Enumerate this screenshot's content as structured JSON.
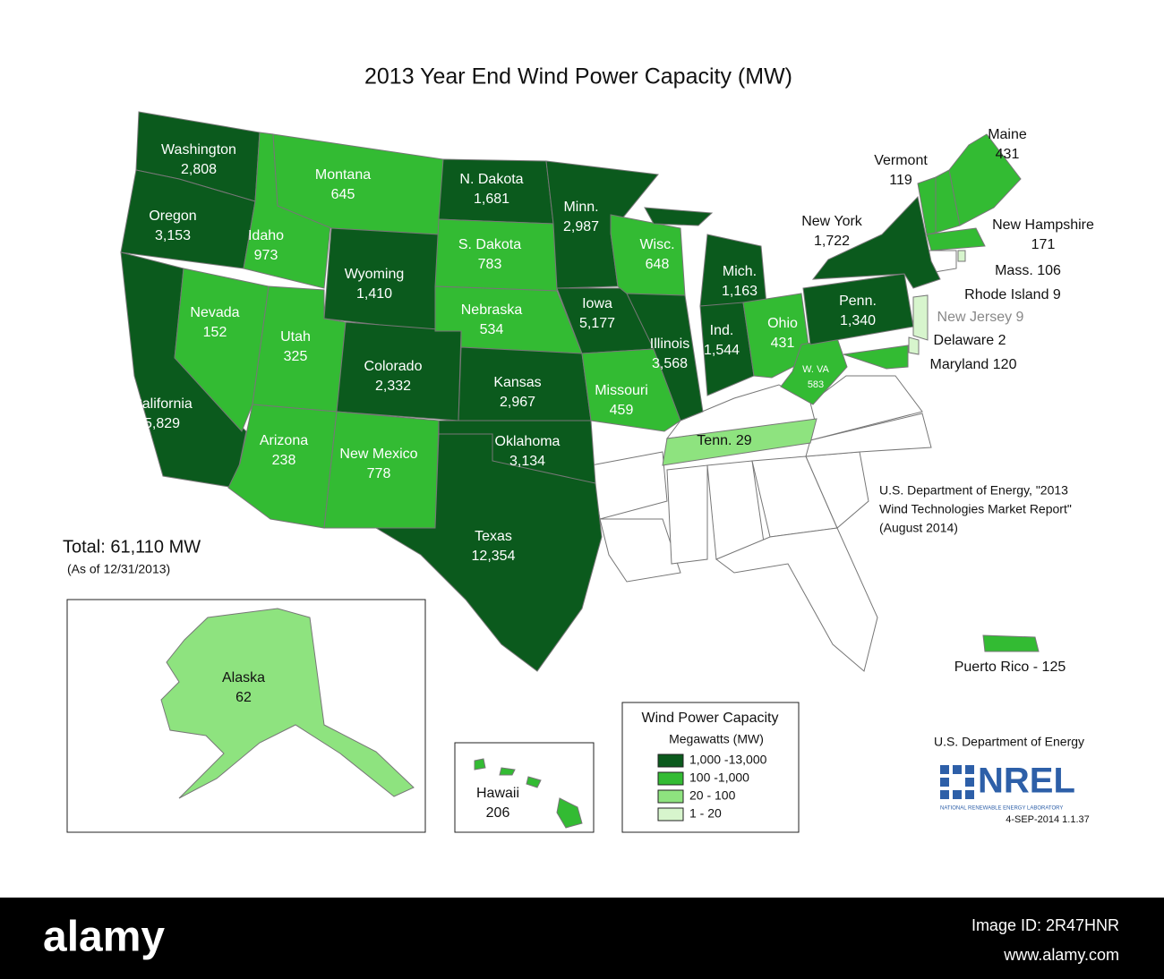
{
  "title": "2013 Year End Wind Power Capacity (MW)",
  "regions": [
    {
      "label": "Washington",
      "value": "2,808",
      "color": "#0b5a1d"
    },
    {
      "label": "Oregon",
      "value": "3,153",
      "color": "#0b5a1d"
    },
    {
      "label": "California",
      "value": "5,829",
      "color": "#0b5a1d"
    },
    {
      "label": "Nevada",
      "value": "152",
      "color": "#33bb33"
    },
    {
      "label": "Idaho",
      "value": "973",
      "color": "#33bb33"
    },
    {
      "label": "Montana",
      "value": "645",
      "color": "#33bb33"
    },
    {
      "label": "Wyoming",
      "value": "1,410",
      "color": "#0b5a1d"
    },
    {
      "label": "Utah",
      "value": "325",
      "color": "#33bb33"
    },
    {
      "label": "Colorado",
      "value": "2,332",
      "color": "#0b5a1d"
    },
    {
      "label": "Arizona",
      "value": "238",
      "color": "#33bb33"
    },
    {
      "label": "New Mexico",
      "value": "778",
      "color": "#33bb33"
    },
    {
      "label": "N. Dakota",
      "value": "1,681",
      "color": "#0b5a1d"
    },
    {
      "label": "S. Dakota",
      "value": "783",
      "color": "#33bb33"
    },
    {
      "label": "Nebraska",
      "value": "534",
      "color": "#33bb33"
    },
    {
      "label": "Kansas",
      "value": "2,967",
      "color": "#0b5a1d"
    },
    {
      "label": "Oklahoma",
      "value": "3,134",
      "color": "#0b5a1d"
    },
    {
      "label": "Texas",
      "value": "12,354",
      "color": "#0b5a1d"
    },
    {
      "label": "Minn.",
      "value": "2,987",
      "color": "#0b5a1d"
    },
    {
      "label": "Iowa",
      "value": "5,177",
      "color": "#0b5a1d"
    },
    {
      "label": "Missouri",
      "value": "459",
      "color": "#33bb33"
    },
    {
      "label": "Wisc.",
      "value": "648",
      "color": "#33bb33"
    },
    {
      "label": "Illinois",
      "value": "3,568",
      "color": "#0b5a1d"
    },
    {
      "label": "Mich.",
      "value": "1,163",
      "color": "#0b5a1d"
    },
    {
      "label": "Ind.",
      "value": "1,544",
      "color": "#0b5a1d"
    },
    {
      "label": "Ohio",
      "value": "431",
      "color": "#33bb33"
    },
    {
      "label": "W. VA",
      "value": "583",
      "color": "#33bb33"
    },
    {
      "label": "Penn.",
      "value": "1,340",
      "color": "#0b5a1d"
    },
    {
      "label": "New York",
      "value": "1,722",
      "color": "#0b5a1d"
    },
    {
      "label": "Vermont",
      "value": "119",
      "color": "#33bb33"
    },
    {
      "label": "Maine",
      "value": "431",
      "color": "#33bb33"
    },
    {
      "label": "New Hampshire",
      "value": "171",
      "color": "#33bb33"
    },
    {
      "label": "Mass. 106",
      "color": "#33bb33"
    },
    {
      "label": "Rhode Island 9",
      "color": "#d7f5cd"
    },
    {
      "label": "New Jersey 9",
      "color": "#d7f5cd"
    },
    {
      "label": "Delaware 2",
      "color": "#d7f5cd"
    },
    {
      "label": "Maryland 120",
      "color": "#33bb33"
    },
    {
      "label": "Tenn.  29",
      "color": "#8ee37f"
    },
    {
      "label": "Alaska",
      "value": "62",
      "color": "#8ee37f"
    },
    {
      "label": "Hawaii",
      "value": "206",
      "color": "#33bb33"
    },
    {
      "label": "Puerto Rico - 125",
      "color": "#33bb33"
    }
  ],
  "total": {
    "text": "Total:  61,110 MW",
    "note": "(As of 12/31/2013)"
  },
  "source": [
    "U.S. Department of Energy, \"2013",
    "Wind Technologies Market Report\"",
    "(August 2014)"
  ],
  "legend": {
    "title": "Wind Power Capacity",
    "subtitle": "Megawatts (MW)",
    "items": [
      {
        "label": "1,000 -13,000",
        "color": "#0b5a1d"
      },
      {
        "label": "100 -1,000",
        "color": "#33bb33"
      },
      {
        "label": "20 - 100",
        "color": "#8ee37f"
      },
      {
        "label": "1 - 20",
        "color": "#d7f5cd"
      }
    ]
  },
  "branding": {
    "agency": "U.S. Department of Energy",
    "logo": "NREL",
    "tagline": "NATIONAL RENEWABLE ENERGY LABORATORY",
    "stamp": "4-SEP-2014 1.1.37"
  },
  "footer": {
    "brand": "alamy",
    "image_id": "Image ID: 2R47HNR",
    "url": "www.alamy.com"
  }
}
